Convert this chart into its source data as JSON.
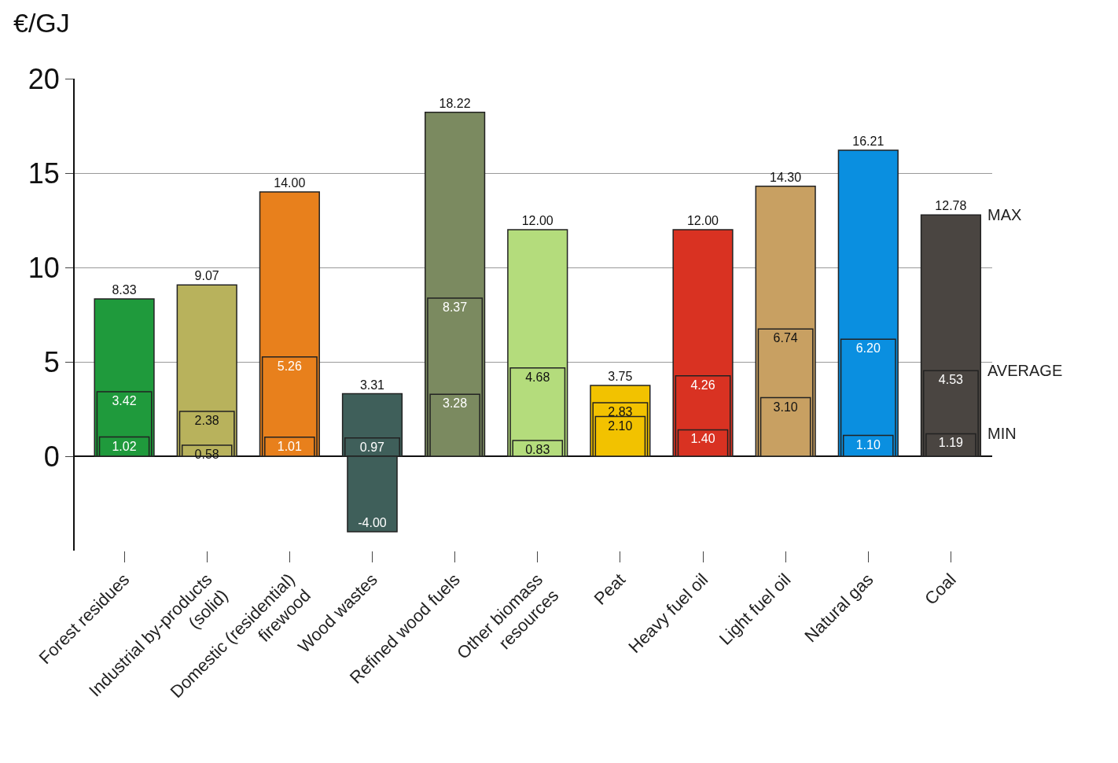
{
  "chart_data": {
    "type": "bar",
    "ylabel": "€/GJ",
    "categories": [
      "Forest residues",
      "Industrial by-products\n(solid)",
      "Domestic (residential)\nfirewood",
      "Wood wastes",
      "Refined wood fuels",
      "Other biomass\nresources",
      "Peat",
      "Heavy fuel oil",
      "Light fuel oil",
      "Natural gas",
      "Coal"
    ],
    "series": [
      {
        "name": "MAX",
        "values": [
          8.33,
          9.07,
          14.0,
          3.31,
          18.22,
          12.0,
          3.75,
          12.0,
          14.3,
          16.21,
          12.78
        ],
        "value_labels": [
          "8.33",
          "9.07",
          "14.00",
          "3.31",
          "18.22",
          "12.00",
          "3.75",
          "12.00",
          "14.30",
          "16.21",
          "12.78"
        ],
        "colors": [
          "#1f9a3c",
          "#b8b25c",
          "#e8801c",
          "#3f5f5a",
          "#7b8a60",
          "#b4dc7c",
          "#f2c200",
          "#d93222",
          "#c8a062",
          "#0a8fe0",
          "#4a4541"
        ]
      },
      {
        "name": "AVERAGE",
        "values": [
          3.42,
          2.38,
          5.26,
          0.97,
          8.37,
          4.68,
          2.83,
          4.26,
          6.74,
          6.2,
          4.53
        ],
        "value_labels": [
          "3.42",
          "2.38",
          "5.26",
          "0.97",
          "8.37",
          "4.68",
          "2.83",
          "4.26",
          "6.74",
          "6.20",
          "4.53"
        ],
        "colors": [
          "#1f9a3c",
          "#b8b25c",
          "#e8801c",
          "#3f5f5a",
          "#7b8a60",
          "#b4dc7c",
          "#f2c200",
          "#d93222",
          "#c8a062",
          "#0a8fe0",
          "#4a4541"
        ]
      },
      {
        "name": "MIN",
        "values": [
          1.02,
          0.58,
          1.01,
          -4.0,
          3.28,
          0.83,
          2.1,
          1.4,
          3.1,
          1.1,
          1.19
        ],
        "value_labels": [
          "1.02",
          "0.58",
          "1.01",
          "-4.00",
          "3.28",
          "0.83",
          "2.10",
          "1.40",
          "3.10",
          "1.10",
          "1.19"
        ],
        "colors": [
          "#1f9a3c",
          "#b8b25c",
          "#e8801c",
          "#3f5f5a",
          "#7b8a60",
          "#b4dc7c",
          "#f2c200",
          "#d93222",
          "#c8a062",
          "#0a8fe0",
          "#4a4541"
        ]
      }
    ],
    "ylim": [
      -5,
      20
    ],
    "yticks": [
      0,
      5,
      10,
      15,
      20
    ],
    "grid": "y",
    "legend": false
  }
}
